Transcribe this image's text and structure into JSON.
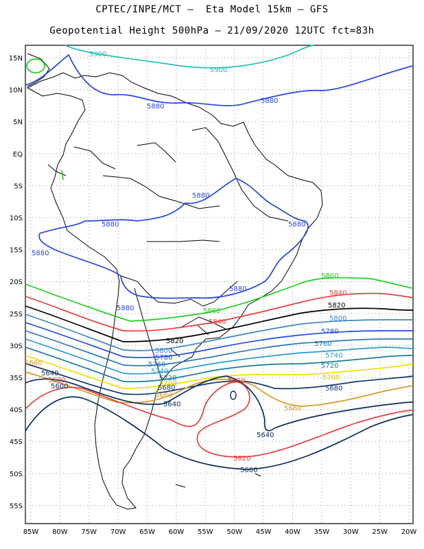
{
  "title": {
    "line1": "CPTEC/INPE/MCT –  Eta Model 15km – GFS",
    "line2": "Geopotential Height 500hPa – 21/09/2020 12UTC fct=83h"
  },
  "axes": {
    "lat_labels": [
      "15N",
      "10N",
      "5N",
      "EQ",
      "5S",
      "10S",
      "15S",
      "20S",
      "25S",
      "30S",
      "35S",
      "40S",
      "45S",
      "50S",
      "55S"
    ],
    "lon_labels": [
      "85W",
      "80W",
      "75W",
      "70W",
      "65W",
      "60W",
      "55W",
      "50W",
      "45W",
      "40W",
      "35W",
      "30W",
      "25W",
      "20W"
    ]
  },
  "contours": [
    {
      "value": "5900",
      "color": "#1fbfb4"
    },
    {
      "value": "5880",
      "color": "#2545e0"
    },
    {
      "value": "5860",
      "color": "#22cc22"
    },
    {
      "value": "5840",
      "color": "#e83c3c"
    },
    {
      "value": "5820",
      "color": "#000000"
    },
    {
      "value": "5800",
      "color": "#3a86c8"
    },
    {
      "value": "5780",
      "color": "#1f4be0"
    },
    {
      "value": "5760",
      "color": "#2a78b8"
    },
    {
      "value": "5740",
      "color": "#2a9bd0"
    },
    {
      "value": "5720",
      "color": "#167a9c"
    },
    {
      "value": "5700",
      "color": "#f0e000"
    },
    {
      "value": "5680",
      "color": "#12366e"
    },
    {
      "value": "5660",
      "color": "#d89a2a"
    },
    {
      "value": "5640",
      "color": "#0a2a5c"
    },
    {
      "value": "5620",
      "color": "#e83c3c"
    },
    {
      "value": "5600",
      "color": "#0a2a5c"
    }
  ]
}
